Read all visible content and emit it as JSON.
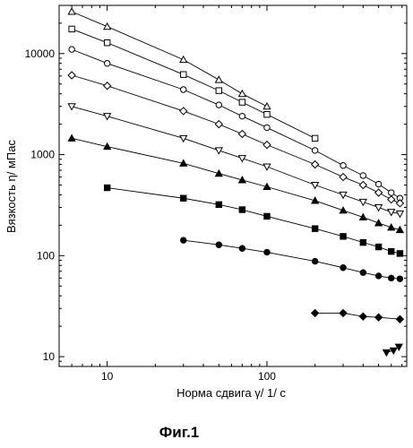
{
  "chart_data": {
    "type": "scatter",
    "xscale": "log",
    "yscale": "log",
    "xlim": [
      5,
      750
    ],
    "ylim": [
      8,
      30000
    ],
    "xlabel": "Норма сдвига γ/ 1/ с",
    "ylabel": "Вязкость η/ мПас",
    "xticks": [
      {
        "value": 10,
        "label": "10"
      },
      {
        "value": 100,
        "label": "100"
      }
    ],
    "yticks": [
      {
        "value": 10,
        "label": "10"
      },
      {
        "value": 100,
        "label": "100"
      },
      {
        "value": 1000,
        "label": "1000"
      },
      {
        "value": 10000,
        "label": "10000"
      }
    ],
    "grid": false,
    "legend": "none",
    "series": [
      {
        "marker": "triangle-up-open",
        "points": [
          [
            6,
            26000
          ],
          [
            10,
            18500
          ],
          [
            30,
            8700
          ],
          [
            50,
            5500
          ],
          [
            70,
            4000
          ],
          [
            100,
            3000
          ]
        ]
      },
      {
        "marker": "square-open",
        "points": [
          [
            6,
            17500
          ],
          [
            10,
            12800
          ],
          [
            30,
            6200
          ],
          [
            50,
            4300
          ],
          [
            70,
            3300
          ],
          [
            100,
            2500
          ],
          [
            200,
            1450
          ]
        ]
      },
      {
        "marker": "circle-open",
        "points": [
          [
            6,
            11000
          ],
          [
            10,
            8000
          ],
          [
            30,
            4400
          ],
          [
            50,
            3100
          ],
          [
            70,
            2400
          ],
          [
            100,
            1850
          ],
          [
            200,
            1100
          ],
          [
            300,
            780
          ],
          [
            400,
            620
          ],
          [
            500,
            510
          ],
          [
            600,
            420
          ],
          [
            680,
            370
          ]
        ]
      },
      {
        "marker": "diamond-open",
        "points": [
          [
            6,
            6100
          ],
          [
            10,
            4800
          ],
          [
            30,
            2700
          ],
          [
            50,
            2000
          ],
          [
            70,
            1600
          ],
          [
            100,
            1250
          ],
          [
            200,
            800
          ],
          [
            300,
            600
          ],
          [
            400,
            500
          ],
          [
            500,
            420
          ],
          [
            600,
            360
          ],
          [
            680,
            330
          ]
        ]
      },
      {
        "marker": "triangle-down-open",
        "points": [
          [
            6,
            3000
          ],
          [
            10,
            2400
          ],
          [
            30,
            1450
          ],
          [
            50,
            1100
          ],
          [
            70,
            920
          ],
          [
            100,
            760
          ],
          [
            200,
            500
          ],
          [
            300,
            400
          ],
          [
            400,
            340
          ],
          [
            500,
            300
          ],
          [
            600,
            270
          ],
          [
            680,
            260
          ]
        ]
      },
      {
        "marker": "triangle-up-filled",
        "points": [
          [
            6,
            1450
          ],
          [
            10,
            1200
          ],
          [
            30,
            820
          ],
          [
            50,
            650
          ],
          [
            70,
            560
          ],
          [
            100,
            480
          ],
          [
            200,
            350
          ],
          [
            300,
            280
          ],
          [
            400,
            240
          ],
          [
            500,
            210
          ],
          [
            600,
            190
          ],
          [
            680,
            180
          ]
        ]
      },
      {
        "marker": "square-filled",
        "points": [
          [
            10,
            470
          ],
          [
            30,
            370
          ],
          [
            50,
            320
          ],
          [
            70,
            285
          ],
          [
            100,
            245
          ],
          [
            200,
            185
          ],
          [
            300,
            155
          ],
          [
            400,
            135
          ],
          [
            500,
            122
          ],
          [
            600,
            110
          ],
          [
            680,
            105
          ]
        ]
      },
      {
        "marker": "circle-filled",
        "points": [
          [
            30,
            142
          ],
          [
            50,
            128
          ],
          [
            70,
            118
          ],
          [
            100,
            108
          ],
          [
            200,
            88
          ],
          [
            300,
            76
          ],
          [
            400,
            68
          ],
          [
            500,
            63
          ],
          [
            600,
            60
          ],
          [
            680,
            59
          ]
        ]
      },
      {
        "marker": "diamond-filled",
        "points": [
          [
            200,
            27
          ],
          [
            300,
            27
          ],
          [
            400,
            25
          ],
          [
            500,
            24.5
          ],
          [
            680,
            23.5
          ]
        ]
      },
      {
        "marker": "triangle-down-filled",
        "points": [
          [
            560,
            11
          ],
          [
            620,
            11.5
          ],
          [
            670,
            12.5
          ]
        ]
      }
    ]
  },
  "caption": "Фиг.1"
}
